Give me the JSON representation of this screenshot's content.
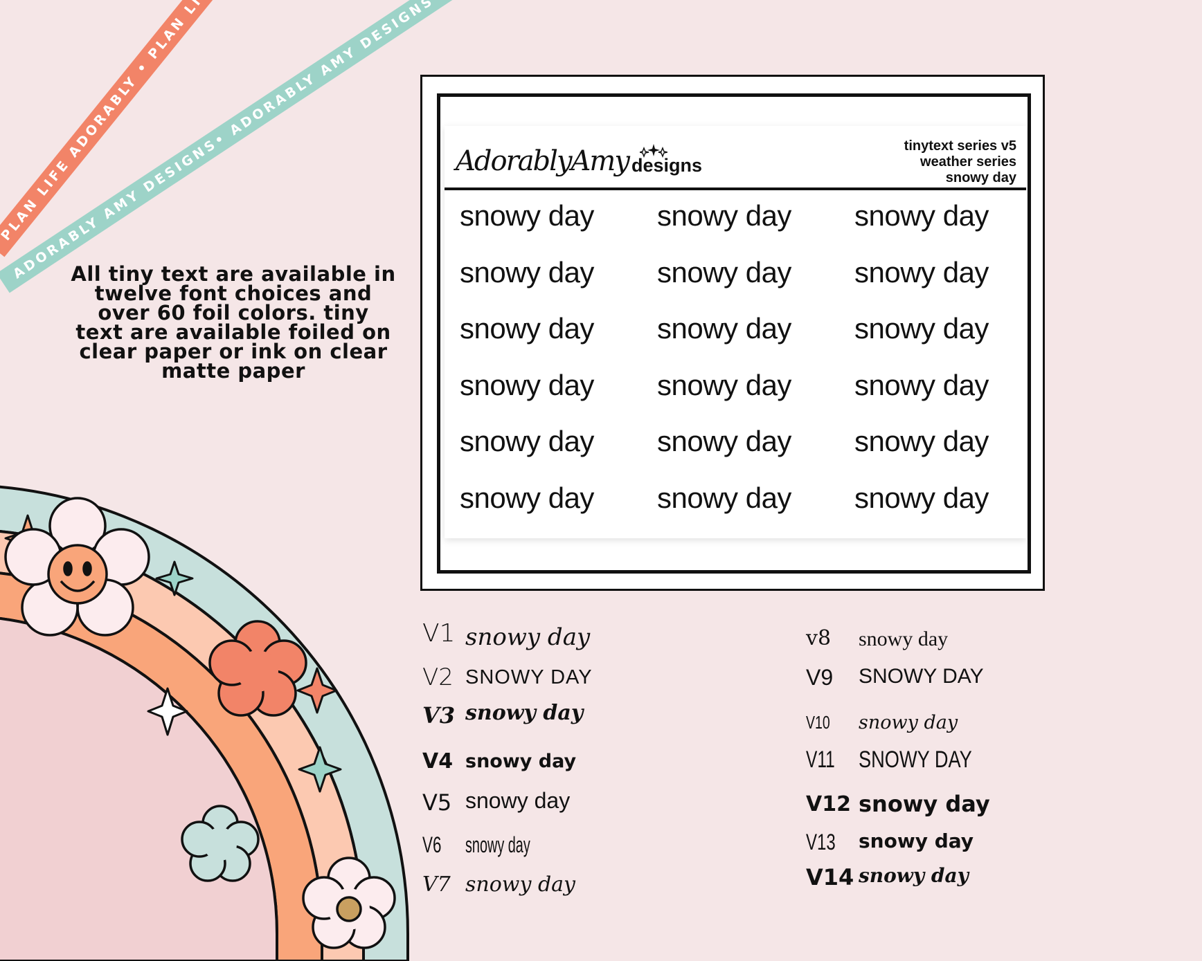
{
  "ribbons": {
    "coral": "PLAN LIFE ADORABLY • PLAN LIFE ADORABLY • PLAN LIFE AD",
    "mint": "ADORABLY AMY DESIGNS• ADORABLY AMY DESIGNS• ADORABLY AMY DESIGNS •"
  },
  "info_text": "All tiny text are available in twelve font choices and over 60 foil colors.  tiny text are available foiled on clear paper or ink on clear matte paper",
  "sheet": {
    "brand_script": "AdorablyAmy",
    "brand_designs": "designs",
    "series_lines": [
      "tinytext series v5",
      "weather series",
      "snowy day"
    ],
    "stickers": [
      "snowy day",
      "snowy day",
      "snowy day",
      "snowy day",
      "snowy day",
      "snowy day",
      "snowy day",
      "snowy day",
      "snowy day",
      "snowy day",
      "snowy day",
      "snowy day",
      "snowy day",
      "snowy day",
      "snowy day",
      "snowy day",
      "snowy day",
      "snowy day"
    ]
  },
  "versions_left": [
    {
      "label": "V1",
      "sample": "snowy day"
    },
    {
      "label": "V2",
      "sample": "SNOWY DAY"
    },
    {
      "label": "V3",
      "sample": "snowy day"
    },
    {
      "label": "V4",
      "sample": "snowy day"
    },
    {
      "label": "V5",
      "sample": "snowy day"
    },
    {
      "label": "V6",
      "sample": "snowy day"
    },
    {
      "label": "V7",
      "sample": "snowy day"
    }
  ],
  "versions_right": [
    {
      "label": "v8",
      "sample": "snowy day"
    },
    {
      "label": "V9",
      "sample": "SNOWY DAY"
    },
    {
      "label": "V10",
      "sample": "snowy day"
    },
    {
      "label": "V11",
      "sample": "SNOWY DAY"
    },
    {
      "label": "V12",
      "sample": "snowy day"
    },
    {
      "label": "V13",
      "sample": "snowy day"
    },
    {
      "label": "V14",
      "sample": "snowy day"
    }
  ],
  "colors": {
    "background": "#f5e6e7",
    "coral": "#f28468",
    "mint": "#9dd3c8",
    "peach": "#f9a57a",
    "light_peach": "#fcc9b1",
    "pink": "#f1d0d2",
    "ink": "#111111"
  }
}
